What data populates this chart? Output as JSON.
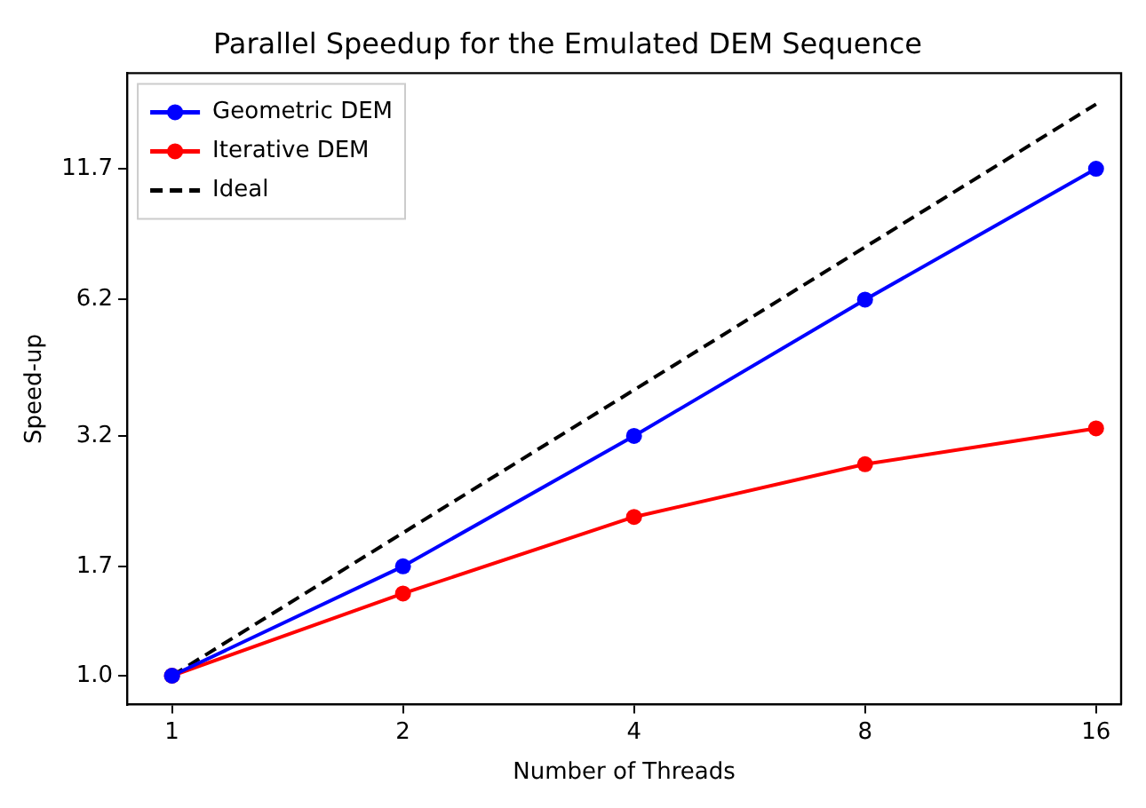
{
  "chart_data": {
    "type": "line",
    "title": "Parallel Speedup for the Emulated DEM Sequence",
    "xlabel": "Number of Threads",
    "ylabel": "Speed-up",
    "x": [
      1,
      2,
      4,
      8,
      16
    ],
    "series": [
      {
        "name": "Geometric DEM",
        "color": "#0000ff",
        "values": [
          1.0,
          1.7,
          3.2,
          6.2,
          11.7
        ],
        "marker": "circle",
        "line_style": "solid"
      },
      {
        "name": "Iterative DEM",
        "color": "#ff0000",
        "values": [
          1.0,
          1.49,
          2.16,
          2.79,
          3.32
        ],
        "marker": "circle",
        "line_style": "solid"
      },
      {
        "name": "Ideal",
        "color": "#000000",
        "x": [
          1,
          16
        ],
        "values": [
          1,
          16
        ],
        "marker": "none",
        "line_style": "dashed"
      }
    ],
    "log": "xy",
    "xlim": [
      0.874,
      17.25
    ],
    "ylim": [
      0.869,
      18.6
    ],
    "xticks": [
      1,
      2,
      4,
      8,
      16
    ],
    "yticks": [
      {
        "value": 1.0,
        "label": "1.0"
      },
      {
        "value": 1.7,
        "label": "1.7"
      },
      {
        "value": 3.2,
        "label": "3.2"
      },
      {
        "value": 6.2,
        "label": "6.2"
      },
      {
        "value": 11.7,
        "label": "11.7"
      }
    ],
    "grid": false,
    "legend": "top left"
  }
}
